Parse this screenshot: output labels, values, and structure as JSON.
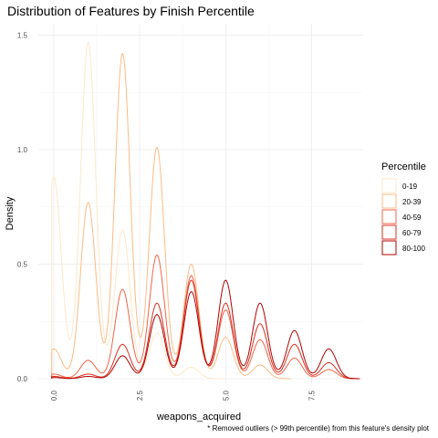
{
  "chart_data": {
    "type": "area",
    "title": "Distribution of Features by Finish Percentile",
    "xlabel": "weapons_acquired",
    "ylabel": "Density",
    "caption": "* Removed outliers (> 99th percentile) from this feature's density plot",
    "xlim": [
      -0.45,
      9.0
    ],
    "ylim": [
      -0.02,
      1.55
    ],
    "x_ticks": [
      0.0,
      2.5,
      5.0,
      7.5
    ],
    "x_tick_labels": [
      "0.0",
      "2.5",
      "5.0",
      "7.5"
    ],
    "y_ticks": [
      0.0,
      0.5,
      1.0,
      1.5
    ],
    "y_tick_labels": [
      "0.0",
      "0.5",
      "1.0",
      "1.5"
    ],
    "grid": true,
    "legend": {
      "title": "Percentile",
      "position": "right"
    },
    "series": [
      {
        "name": "0-19",
        "color": "#fee8c8",
        "x_max": 4.9,
        "peaks": [
          [
            0,
            0.88
          ],
          [
            1,
            1.47
          ],
          [
            2,
            0.65
          ],
          [
            3,
            0.2
          ],
          [
            4,
            0.05
          ]
        ]
      },
      {
        "name": "20-39",
        "color": "#fdbb84",
        "x_max": 6.9,
        "peaks": [
          [
            0,
            0.13
          ],
          [
            1,
            0.77
          ],
          [
            2,
            1.42
          ],
          [
            3,
            1.01
          ],
          [
            4,
            0.5
          ],
          [
            5,
            0.18
          ],
          [
            6,
            0.06
          ]
        ]
      },
      {
        "name": "40-59",
        "color": "#ef6548",
        "x_max": 8.9,
        "peaks": [
          [
            0,
            0.02
          ],
          [
            1,
            0.08
          ],
          [
            2,
            0.39
          ],
          [
            3,
            0.54
          ],
          [
            4,
            0.45
          ],
          [
            5,
            0.3
          ],
          [
            6,
            0.17
          ],
          [
            7,
            0.09
          ],
          [
            8,
            0.04
          ]
        ]
      },
      {
        "name": "60-79",
        "color": "#d7301f",
        "x_max": 8.9,
        "peaks": [
          [
            0,
            0.01
          ],
          [
            1,
            0.02
          ],
          [
            2,
            0.15
          ],
          [
            3,
            0.33
          ],
          [
            4,
            0.43
          ],
          [
            5,
            0.33
          ],
          [
            6,
            0.24
          ],
          [
            7,
            0.15
          ],
          [
            8,
            0.07
          ]
        ]
      },
      {
        "name": "80-100",
        "color": "#b30000",
        "x_max": 8.9,
        "peaks": [
          [
            0,
            0.005
          ],
          [
            1,
            0.01
          ],
          [
            2,
            0.1
          ],
          [
            3,
            0.28
          ],
          [
            4,
            0.38
          ],
          [
            5,
            0.43
          ],
          [
            6,
            0.33
          ],
          [
            7,
            0.21
          ],
          [
            8,
            0.13
          ]
        ]
      }
    ]
  }
}
